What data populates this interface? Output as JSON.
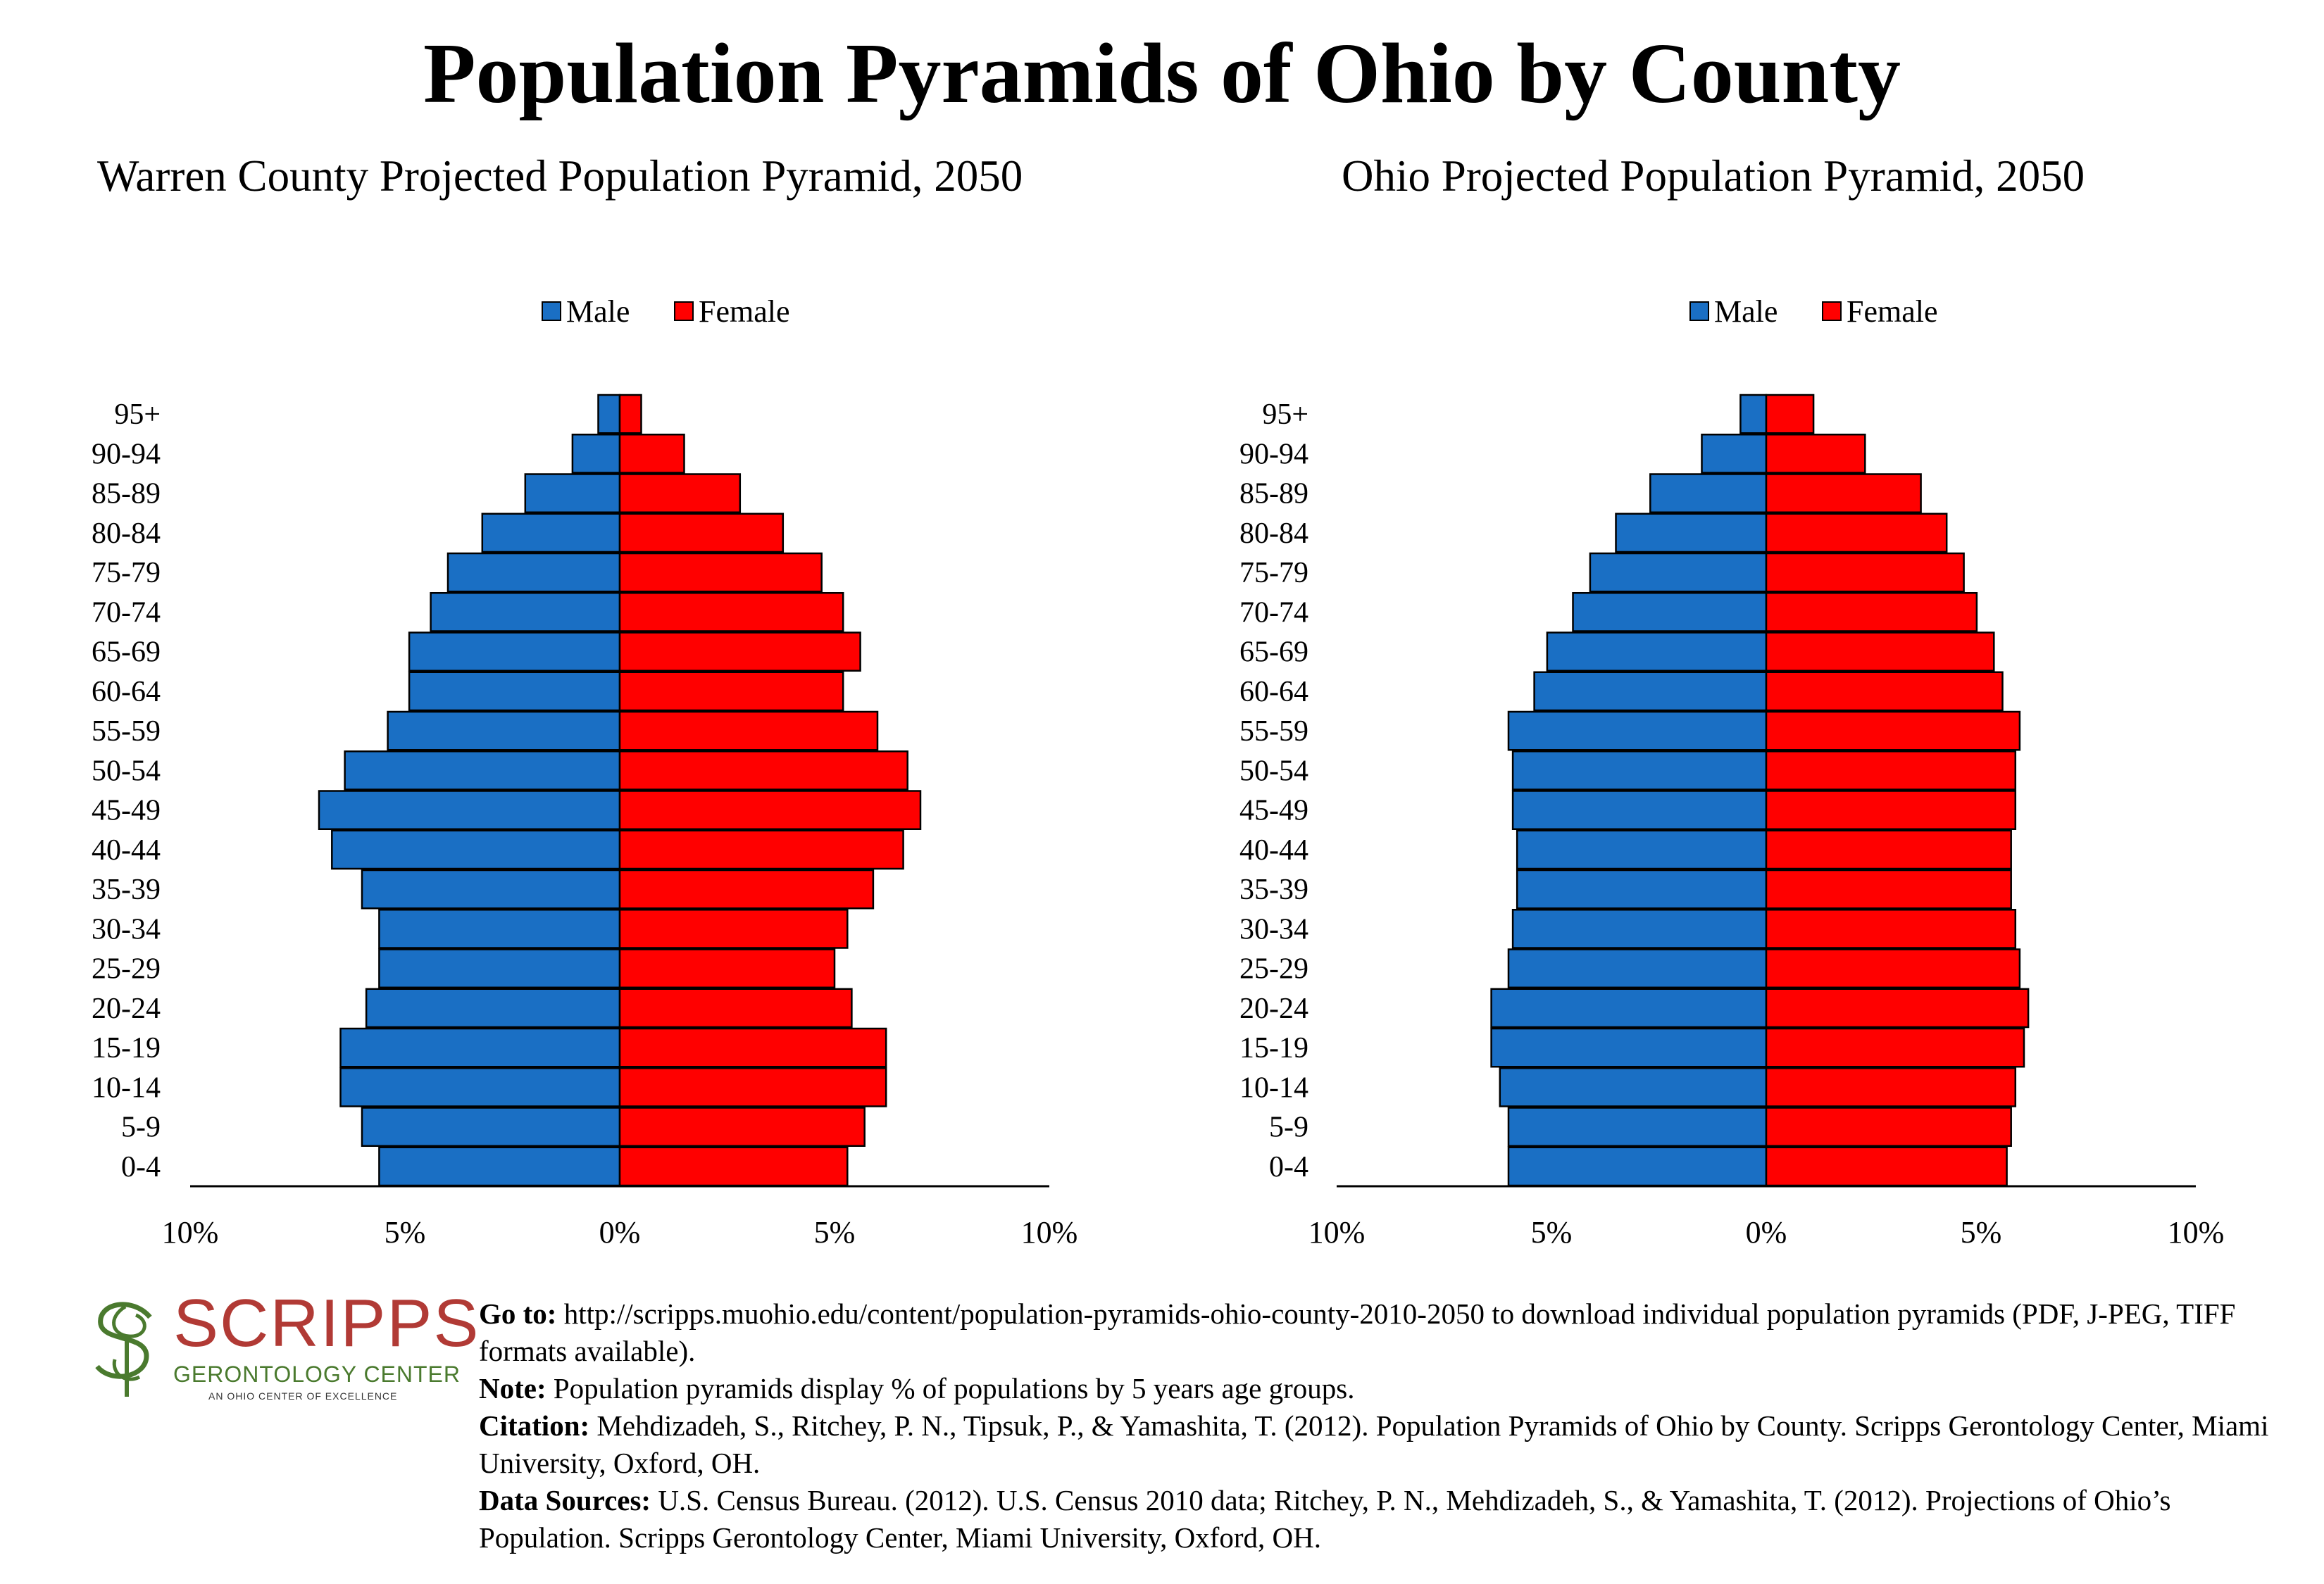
{
  "title": "Population Pyramids of Ohio by County",
  "notes": {
    "goto_label": "Go to:",
    "goto_text": "http://scripps.muohio.edu/content/population-pyramids-ohio-county-2010-2050 to download individual population pyramids (PDF, J-PEG, TIFF formats available).",
    "note_label": "Note:",
    "note_text": "Population pyramids display % of populations by 5 years age groups.",
    "citation_label": "Citation:",
    "citation_text": "Mehdizadeh, S., Ritchey, P. N., Tipsuk, P., & Yamashita, T. (2012). Population Pyramids of Ohio by County. Scripps Gerontology Center, Miami University, Oxford, OH.",
    "sources_label": "Data Sources:",
    "sources_text": "U.S. Census Bureau. (2012). U.S. Census 2010 data; Ritchey, P. N., Mehdizadeh, S., & Yamashita, T. (2012). Projections of Ohio’s Population. Scripps Gerontology Center, Miami University, Oxford, OH."
  },
  "logo": {
    "word": "SCRIPPS",
    "subtitle": "GERONTOLOGY CENTER",
    "tagline": "AN OHIO CENTER OF EXCELLENCE"
  },
  "colors": {
    "male": "#1a6fc4",
    "female": "#ff0000",
    "outline": "#000000"
  },
  "chart_data": [
    {
      "type": "bar",
      "orientation": "horizontal-pyramid",
      "title": "Warren County Projected Population Pyramid, 2050",
      "categories": [
        "0-4",
        "5-9",
        "10-14",
        "15-19",
        "20-24",
        "25-29",
        "30-34",
        "35-39",
        "40-44",
        "45-49",
        "50-54",
        "55-59",
        "60-64",
        "65-69",
        "70-74",
        "75-79",
        "80-84",
        "85-89",
        "90-94",
        "95+"
      ],
      "series": [
        {
          "name": "Male",
          "values": [
            5.6,
            6.0,
            6.5,
            6.5,
            5.9,
            5.6,
            5.6,
            6.0,
            6.7,
            7.0,
            6.4,
            5.4,
            4.9,
            4.9,
            4.4,
            4.0,
            3.2,
            2.2,
            1.1,
            0.5
          ]
        },
        {
          "name": "Female",
          "values": [
            5.3,
            5.7,
            6.2,
            6.2,
            5.4,
            5.0,
            5.3,
            5.9,
            6.6,
            7.0,
            6.7,
            6.0,
            5.2,
            5.6,
            5.2,
            4.7,
            3.8,
            2.8,
            1.5,
            0.5
          ]
        }
      ],
      "legend": [
        "Male",
        "Female"
      ],
      "legend_position": "top-center",
      "xlim": [
        -10,
        10
      ],
      "xticks": [
        "10%",
        "5%",
        "0%",
        "5%",
        "10%"
      ],
      "grid": false
    },
    {
      "type": "bar",
      "orientation": "horizontal-pyramid",
      "title": "Ohio Projected Population Pyramid, 2050",
      "categories": [
        "0-4",
        "5-9",
        "10-14",
        "15-19",
        "20-24",
        "25-29",
        "30-34",
        "35-39",
        "40-44",
        "45-49",
        "50-54",
        "55-59",
        "60-64",
        "65-69",
        "70-74",
        "75-79",
        "80-84",
        "85-89",
        "90-94",
        "95+"
      ],
      "series": [
        {
          "name": "Male",
          "values": [
            6.0,
            6.0,
            6.2,
            6.4,
            6.4,
            6.0,
            5.9,
            5.8,
            5.8,
            5.9,
            5.9,
            6.0,
            5.4,
            5.1,
            4.5,
            4.1,
            3.5,
            2.7,
            1.5,
            0.6
          ]
        },
        {
          "name": "Female",
          "values": [
            5.6,
            5.7,
            5.8,
            6.0,
            6.1,
            5.9,
            5.8,
            5.7,
            5.7,
            5.8,
            5.8,
            5.9,
            5.5,
            5.3,
            4.9,
            4.6,
            4.2,
            3.6,
            2.3,
            1.1
          ]
        }
      ],
      "legend": [
        "Male",
        "Female"
      ],
      "legend_position": "top-center",
      "xlim": [
        -10,
        10
      ],
      "xticks": [
        "10%",
        "5%",
        "0%",
        "5%",
        "10%"
      ],
      "grid": false
    }
  ]
}
